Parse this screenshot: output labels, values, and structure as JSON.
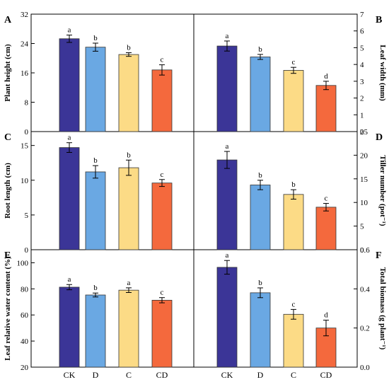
{
  "colors": {
    "CK": "#3b3597",
    "D": "#6aa8e3",
    "C": "#fcdb86",
    "CD": "#f4693d",
    "axis": "#000000"
  },
  "chart_data": [
    {
      "type": "bar",
      "panel": "A",
      "ylabel": "Plant height (cm)",
      "ylim": [
        0,
        32
      ],
      "yticks": [
        "0",
        "8",
        "16",
        "24",
        "32"
      ],
      "yaxis_side": "left",
      "categories": [
        "CK",
        "D",
        "C",
        "CD"
      ],
      "values": [
        25.3,
        23.0,
        21.0,
        16.8
      ],
      "errors": [
        1.0,
        1.1,
        0.5,
        1.4
      ],
      "letters": [
        "a",
        "b",
        "b",
        "c"
      ]
    },
    {
      "type": "bar",
      "panel": "B",
      "ylabel": "Leaf width (mm)",
      "ylim": [
        0,
        7
      ],
      "yticks": [
        "0",
        "1",
        "2",
        "3",
        "4",
        "5",
        "6",
        "7"
      ],
      "yaxis_side": "right",
      "categories": [
        "CK",
        "D",
        "C",
        "CD"
      ],
      "values": [
        5.1,
        4.45,
        3.65,
        2.75
      ],
      "errors": [
        0.3,
        0.15,
        0.18,
        0.25
      ],
      "letters": [
        "a",
        "b",
        "c",
        "d"
      ]
    },
    {
      "type": "bar",
      "panel": "C",
      "ylabel": "Root length (cm)",
      "ylim": [
        0,
        17
      ],
      "yticks": [
        "0",
        "5",
        "10",
        "15"
      ],
      "yaxis_side": "left",
      "categories": [
        "CK",
        "D",
        "C",
        "CD"
      ],
      "values": [
        14.7,
        11.2,
        11.8,
        9.6
      ],
      "errors": [
        0.7,
        0.9,
        1.1,
        0.5
      ],
      "letters": [
        "a",
        "b",
        "b",
        "c"
      ]
    },
    {
      "type": "bar",
      "panel": "D",
      "ylabel": "Tiller number (pot⁻¹)",
      "ylim": [
        0,
        25
      ],
      "yticks": [
        "0",
        "5",
        "10",
        "15",
        "20",
        "25"
      ],
      "yaxis_side": "right",
      "categories": [
        "CK",
        "D",
        "C",
        "CD"
      ],
      "values": [
        19.0,
        13.7,
        11.7,
        9.0
      ],
      "errors": [
        1.8,
        1.0,
        1.0,
        0.8
      ],
      "letters": [
        "a",
        "b",
        "b",
        "c"
      ]
    },
    {
      "type": "bar",
      "panel": "E",
      "ylabel": "Leaf relative water content (%)",
      "ylim": [
        20,
        110
      ],
      "yticks": [
        "20",
        "40",
        "60",
        "80",
        "100"
      ],
      "yaxis_side": "left",
      "categories": [
        "CK",
        "D",
        "C",
        "CD"
      ],
      "values": [
        81.3,
        75.3,
        79.0,
        71.3
      ],
      "errors": [
        2.0,
        1.5,
        1.8,
        2.0
      ],
      "letters": [
        "a",
        "b",
        "a",
        "c"
      ]
    },
    {
      "type": "bar",
      "panel": "F",
      "ylabel": "Total biomass (g plant⁻¹)",
      "ylim": [
        0,
        0.6
      ],
      "yticks": [
        "0.0",
        "0.2",
        "0.4",
        "0.6"
      ],
      "yaxis_side": "right",
      "categories": [
        "CK",
        "D",
        "C",
        "CD"
      ],
      "values": [
        0.51,
        0.38,
        0.27,
        0.2
      ],
      "errors": [
        0.035,
        0.025,
        0.025,
        0.04
      ],
      "letters": [
        "a",
        "b",
        "c",
        "d"
      ]
    }
  ]
}
